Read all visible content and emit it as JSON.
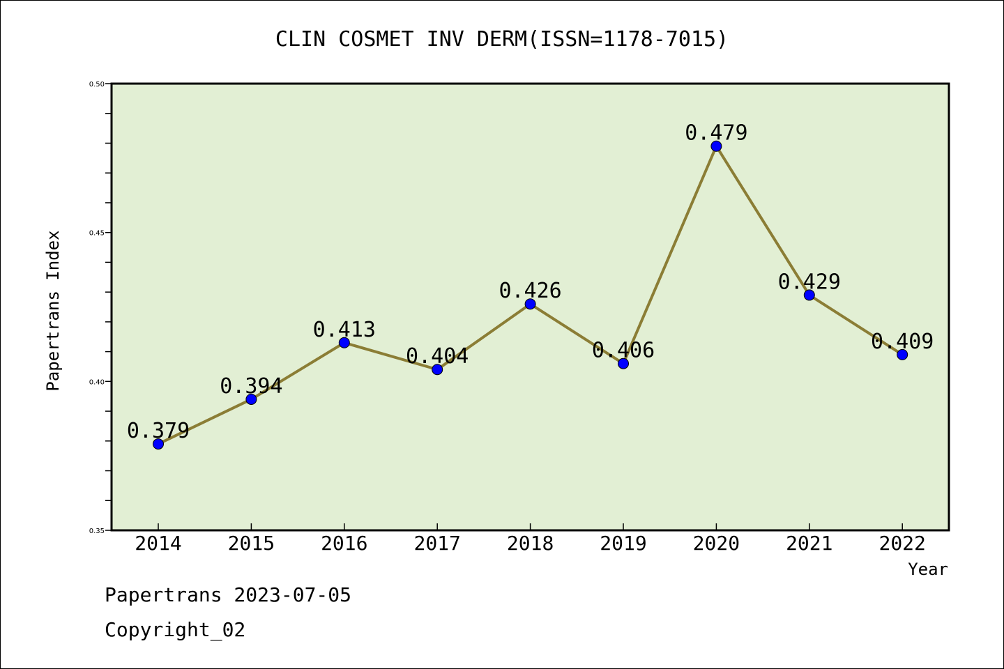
{
  "chart_data": {
    "type": "line",
    "title": "CLIN COSMET INV DERM(ISSN=1178-7015)",
    "xlabel": "Year",
    "ylabel": "Papertrans Index",
    "categories": [
      "2014",
      "2015",
      "2016",
      "2017",
      "2018",
      "2019",
      "2020",
      "2021",
      "2022"
    ],
    "values": [
      0.379,
      0.394,
      0.413,
      0.404,
      0.426,
      0.406,
      0.479,
      0.429,
      0.409
    ],
    "data_labels": [
      "0.379",
      "0.394",
      "0.413",
      "0.404",
      "0.426",
      "0.406",
      "0.479",
      "0.429",
      "0.409"
    ],
    "ylim": [
      0.35,
      0.5
    ],
    "yticks": [
      "0.35",
      "0.40",
      "0.45",
      "0.50"
    ],
    "grid": false,
    "line_color": "#8b7d35",
    "marker_color": "#0000ff",
    "plot_background": "#e2efd4"
  },
  "footer": {
    "date_line": "Papertrans 2023-07-05",
    "copyright": "Copyright_02"
  }
}
